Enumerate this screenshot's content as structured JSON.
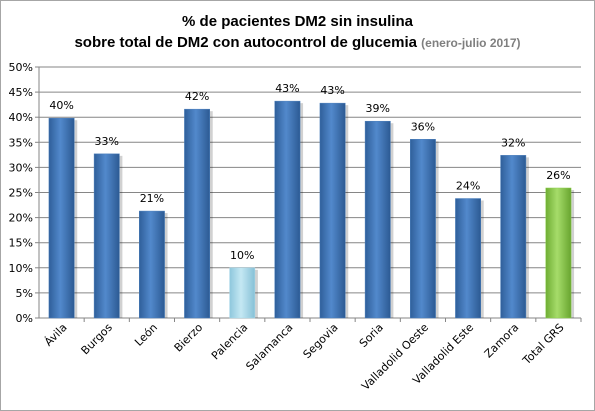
{
  "chart_data": {
    "type": "bar",
    "title_line1": "% de pacientes DM2 sin insulina",
    "title_line2": "sobre total de DM2 con autocontrol de glucemia",
    "title_period": "(enero-julio 2017)",
    "categories": [
      "Ávila",
      "Burgos",
      "León",
      "Bierzo",
      "Palencia",
      "Salamanca",
      "Segovia",
      "Soria",
      "Valladolid Oeste",
      "Valladolid Este",
      "Zamora",
      "Total GRS"
    ],
    "values": [
      40,
      33,
      21,
      42,
      10,
      43,
      43,
      39,
      36,
      24,
      32,
      26
    ],
    "data_labels": [
      "40%",
      "33%",
      "21%",
      "42%",
      "10%",
      "43%",
      "43%",
      "39%",
      "36%",
      "24%",
      "32%",
      "26%"
    ],
    "bar_values": [
      39.8,
      32.7,
      21.3,
      41.6,
      10.0,
      43.2,
      42.8,
      39.2,
      35.6,
      23.8,
      32.4,
      25.9
    ],
    "bar_colors": [
      "#4a7ebb",
      "#4a7ebb",
      "#4a7ebb",
      "#4a7ebb",
      "#a9d8e8",
      "#4a7ebb",
      "#4a7ebb",
      "#4a7ebb",
      "#4a7ebb",
      "#4a7ebb",
      "#4a7ebb",
      "#8ccf4d"
    ],
    "yticks": [
      "0%",
      "5%",
      "10%",
      "15%",
      "20%",
      "25%",
      "30%",
      "35%",
      "40%",
      "45%",
      "50%"
    ],
    "ylim": [
      0,
      50
    ],
    "ylabel": "",
    "xlabel": "",
    "grid": true,
    "legend": "none",
    "gridline_color": "#868686"
  }
}
